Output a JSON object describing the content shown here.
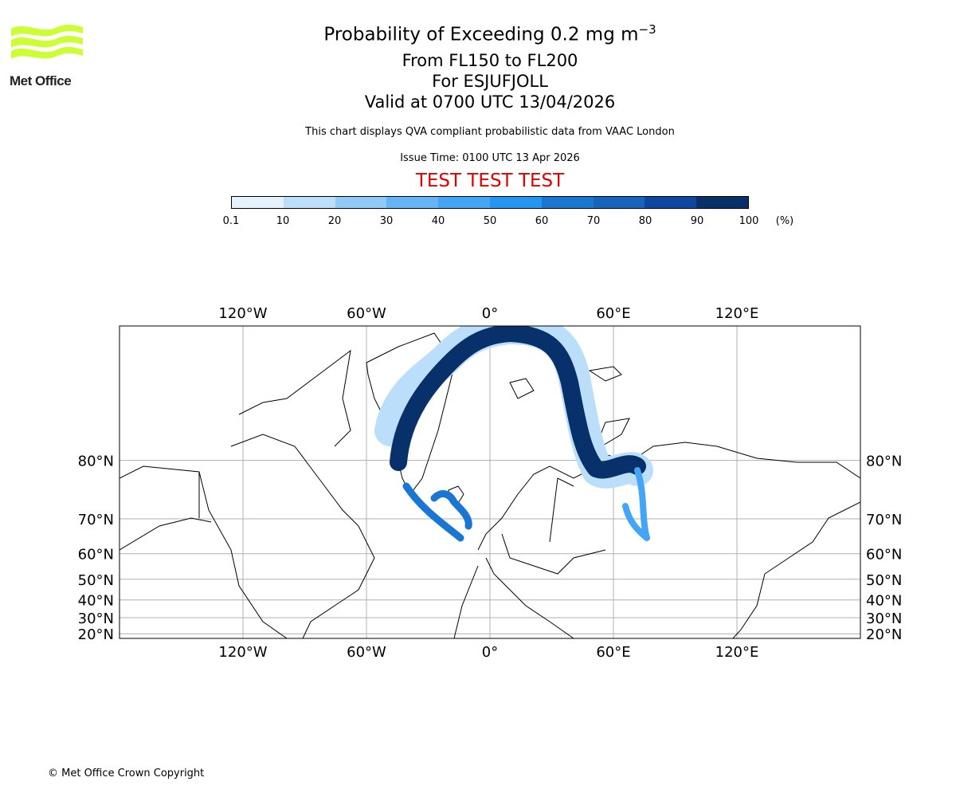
{
  "logo": {
    "text": "Met Office"
  },
  "title": {
    "line1_prefix": "Probability of Exceeding 0.2 mg m",
    "line1_sup": "−3",
    "line2": "From FL150 to FL200",
    "line3": "For ESJUFJOLL",
    "line4": "Valid at 0700 UTC 13/04/2026"
  },
  "subtitle": "This chart displays QVA compliant probabilistic data from VAAC London",
  "issue_time": "Issue Time: 0100 UTC 13 Apr 2026",
  "test_banner": "TEST TEST TEST",
  "test_color": "#e00000",
  "copyright": "© Met Office Crown Copyright",
  "chart_data": {
    "type": "heatmap",
    "title": "Probability of Exceeding 0.2 mg m−3",
    "colorbar": {
      "ticks": [
        "0.1",
        "10",
        "20",
        "30",
        "40",
        "50",
        "60",
        "70",
        "80",
        "90",
        "100"
      ],
      "unit": "(%)",
      "colors": [
        "#e3f2fd",
        "#bbdefb",
        "#90caf9",
        "#64b5f6",
        "#42a5f5",
        "#2196f3",
        "#1976d2",
        "#1565c0",
        "#0d47a1",
        "#08306b"
      ]
    },
    "map": {
      "projection": "mercator",
      "lon_range": [
        -180,
        180
      ],
      "lat_range": [
        17,
        88
      ],
      "lon_ticks": [
        {
          "v": -120,
          "label": "120°W"
        },
        {
          "v": -60,
          "label": "60°W"
        },
        {
          "v": 0,
          "label": "0°"
        },
        {
          "v": 60,
          "label": "60°E"
        },
        {
          "v": 120,
          "label": "120°E"
        }
      ],
      "lat_ticks": [
        {
          "v": 80,
          "label": "80°N"
        },
        {
          "v": 70,
          "label": "70°N"
        },
        {
          "v": 60,
          "label": "60°N"
        },
        {
          "v": 50,
          "label": "50°N"
        },
        {
          "v": 40,
          "label": "40°N"
        },
        {
          "v": 30,
          "label": "30°N"
        },
        {
          "v": 20,
          "label": "20°N"
        }
      ],
      "grid": true
    }
  }
}
